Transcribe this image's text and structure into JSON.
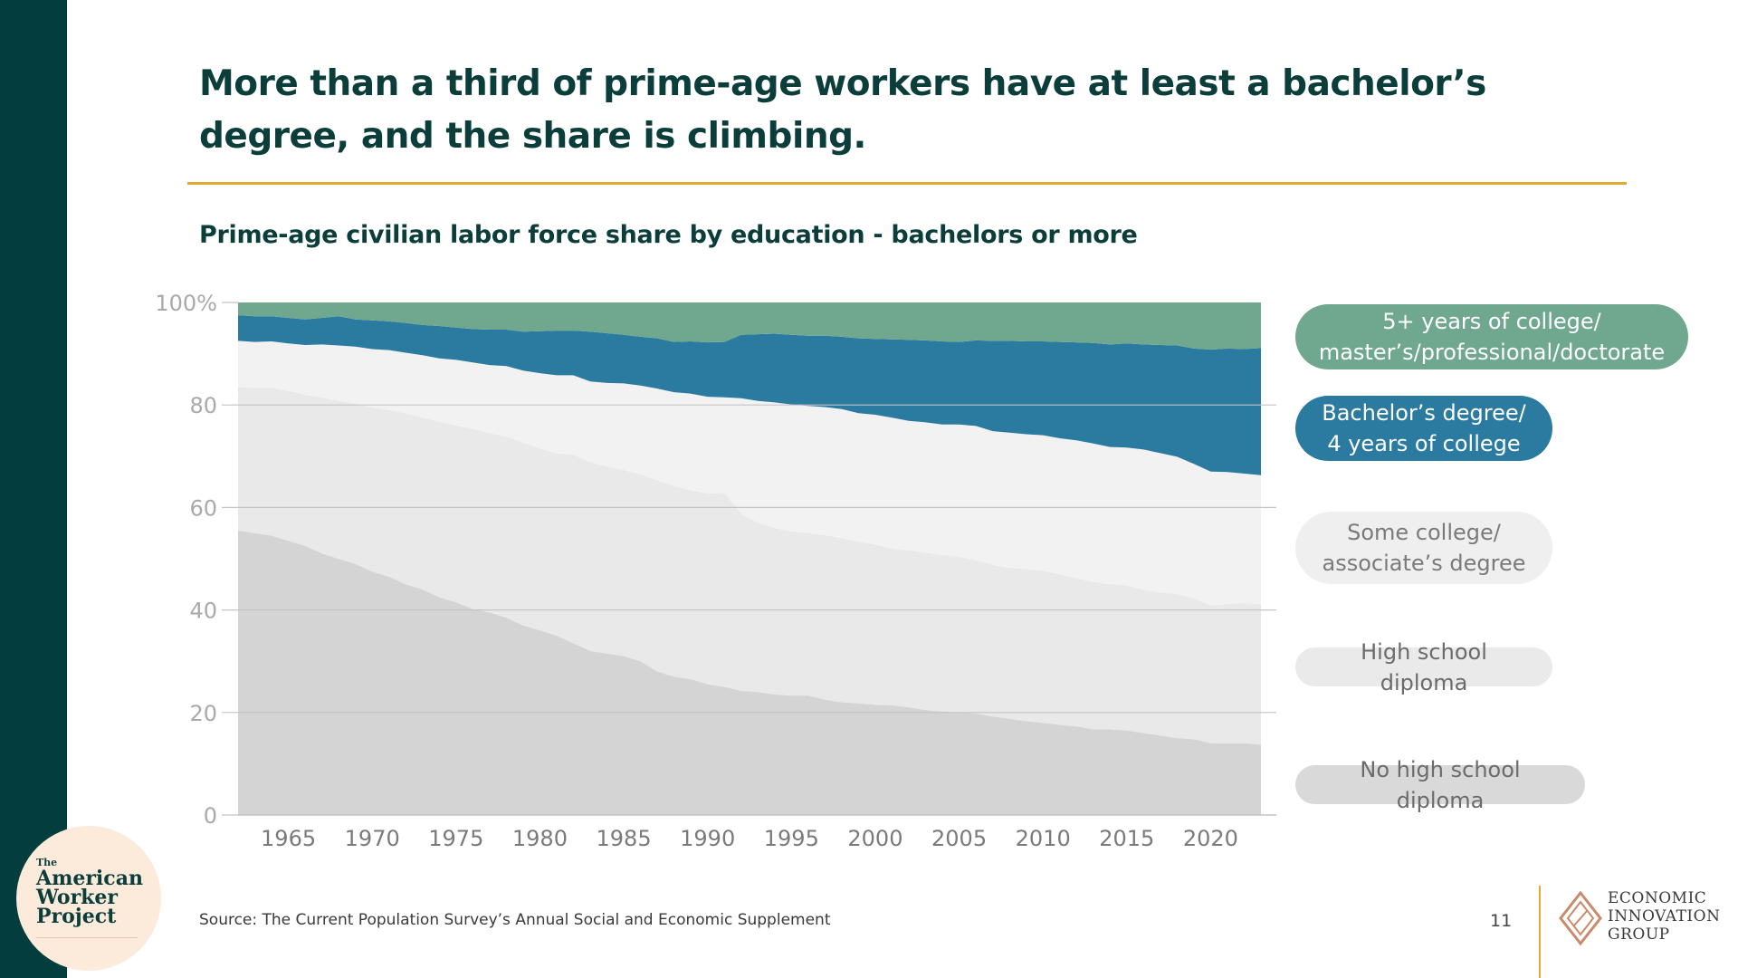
{
  "title": "More than a third of prime-age workers have at least a bachelor’s degree, and the share is climbing.",
  "subtitle": "Prime-age civilian labor force share by education - bachelors or more",
  "source": "Source: The Current Population Survey’s Annual Social and Economic Supplement",
  "page_number": "11",
  "legend": {
    "masters": "5+ years of college/ master’s/professional/doctorate",
    "bachelors": "Bachelor’s degree/ 4 years of college",
    "some_college": "Some college/ associate’s degree",
    "high_school": "High school diploma",
    "no_high_school": "No high school diploma"
  },
  "logo": {
    "the": "The",
    "line1": "American",
    "line2": "Worker",
    "line3": "Project"
  },
  "eig": {
    "line1": "ECONOMIC",
    "line2": "INNOVATION",
    "line3": "GROUP"
  },
  "chart_data": {
    "type": "area",
    "stacked": true,
    "x": [
      1962,
      1963,
      1964,
      1965,
      1966,
      1967,
      1968,
      1969,
      1970,
      1971,
      1972,
      1973,
      1974,
      1975,
      1976,
      1977,
      1978,
      1979,
      1980,
      1981,
      1982,
      1983,
      1984,
      1985,
      1986,
      1987,
      1988,
      1989,
      1990,
      1991,
      1992,
      1993,
      1994,
      1995,
      1996,
      1997,
      1998,
      1999,
      2000,
      2001,
      2002,
      2003,
      2004,
      2005,
      2006,
      2007,
      2008,
      2009,
      2010,
      2011,
      2012,
      2013,
      2014,
      2015,
      2016,
      2017,
      2018,
      2019,
      2020,
      2021,
      2022,
      2023
    ],
    "ylim": [
      0,
      100
    ],
    "xticks": [
      1965,
      1970,
      1975,
      1980,
      1985,
      1990,
      1995,
      2000,
      2005,
      2010,
      2015,
      2020
    ],
    "yticks": [
      0,
      20,
      40,
      60,
      80,
      100
    ],
    "ytick_labels": [
      "0",
      "20",
      "40",
      "60",
      "80",
      "100%"
    ],
    "grid": "horizontal",
    "series": [
      {
        "name": "No high school diploma",
        "color": "#d4d4d4",
        "values": [
          55.5,
          55,
          54.5,
          53.5,
          52.5,
          51,
          50,
          49,
          47.5,
          46.5,
          45,
          44,
          42.5,
          41.5,
          40.2,
          39.5,
          38.5,
          37,
          36,
          35,
          33.5,
          32,
          31.5,
          31,
          30,
          28,
          27,
          26.5,
          25.5,
          25,
          24.2,
          24,
          23.5,
          23.3,
          23.3,
          22.5,
          22,
          21.8,
          21.5,
          21.4,
          21,
          20.5,
          20.2,
          20,
          19.8,
          19.2,
          18.8,
          18.3,
          18,
          17.6,
          17.3,
          16.7,
          16.7,
          16.5,
          16,
          15.5,
          15,
          14.8,
          14,
          14,
          14,
          13.7
        ]
      },
      {
        "name": "High school diploma",
        "color": "#e9e9e9",
        "values": [
          28,
          28.3,
          28.8,
          29.2,
          29.5,
          30.5,
          30.8,
          31.3,
          32,
          32.5,
          33.4,
          33.5,
          34.2,
          34.5,
          35.2,
          35,
          35.3,
          35.7,
          35.5,
          35.5,
          36.8,
          36.8,
          36.5,
          36.3,
          36.5,
          37.3,
          37.2,
          36.8,
          37.2,
          37.9,
          34.6,
          33,
          32.5,
          32,
          31.7,
          32.1,
          32,
          31.5,
          31.3,
          30.6,
          30.6,
          30.7,
          30.5,
          30.4,
          29.9,
          29.6,
          29.4,
          29.7,
          29.7,
          29.3,
          28.9,
          28.8,
          28.3,
          28.3,
          27.9,
          27.9,
          28.1,
          27.5,
          26.9,
          27.1,
          27.4,
          27.4
        ]
      },
      {
        "name": "Some college/ associate’s degree",
        "color": "#f2f2f2",
        "values": [
          9,
          9,
          9.1,
          9.3,
          9.7,
          10.3,
          10.8,
          11.1,
          11.4,
          11.7,
          11.8,
          12.2,
          12.4,
          12.8,
          12.9,
          13.3,
          13.8,
          14,
          14.7,
          15.3,
          15.5,
          15.8,
          16.3,
          16.9,
          17.3,
          17.9,
          18.3,
          18.9,
          18.9,
          18.6,
          22.5,
          23.8,
          24.5,
          24.8,
          24.8,
          25,
          25.2,
          25.1,
          25.3,
          25.5,
          25.3,
          25.4,
          25.5,
          25.8,
          26.2,
          26.1,
          26.4,
          26.3,
          26.4,
          26.6,
          26.9,
          27,
          26.8,
          26.9,
          27.4,
          27.2,
          26.8,
          26.2,
          26.1,
          25.8,
          25.2,
          25.2
        ]
      },
      {
        "name": "Bachelor’s degree/ 4 years of college",
        "color": "#2b7aa0",
        "values": [
          5,
          5,
          4.9,
          5,
          5,
          5.2,
          5.7,
          5.3,
          5.6,
          5.6,
          5.8,
          5.9,
          6.3,
          6.3,
          6.5,
          6.9,
          7.1,
          7.6,
          8.2,
          8.7,
          8.7,
          9.7,
          9.7,
          9.5,
          9.5,
          9.8,
          9.8,
          10.2,
          10.6,
          10.8,
          12.4,
          13,
          13.4,
          13.6,
          13.7,
          13.9,
          14.1,
          14.6,
          14.8,
          15.3,
          15.8,
          16,
          16.2,
          16.1,
          16.7,
          17.6,
          17.9,
          18.1,
          18.3,
          18.8,
          19.1,
          19.6,
          20,
          20.3,
          20.5,
          21.1,
          21.7,
          22.5,
          23.8,
          24.1,
          24.3,
          24.8
        ]
      },
      {
        "name": "5+ years of college/ master’s/professional/doctorate",
        "color": "#6fa88f",
        "values": [
          2.5,
          2.7,
          2.7,
          3,
          3.3,
          3,
          2.7,
          3.3,
          3.5,
          3.7,
          4,
          4.4,
          4.6,
          4.9,
          5.2,
          5.3,
          5.3,
          5.7,
          5.6,
          5.5,
          5.5,
          5.7,
          6,
          6.3,
          6.7,
          7,
          7.7,
          7.6,
          7.8,
          7.7,
          6.3,
          6.2,
          6.1,
          6.3,
          6.5,
          6.5,
          6.7,
          7,
          7.1,
          7.2,
          7.3,
          7.4,
          7.6,
          7.7,
          7.4,
          7.5,
          7.5,
          7.6,
          7.6,
          7.7,
          7.8,
          7.9,
          8.2,
          8,
          8.2,
          8.3,
          8.4,
          9,
          9.2,
          9,
          9.1,
          8.9
        ]
      }
    ]
  }
}
